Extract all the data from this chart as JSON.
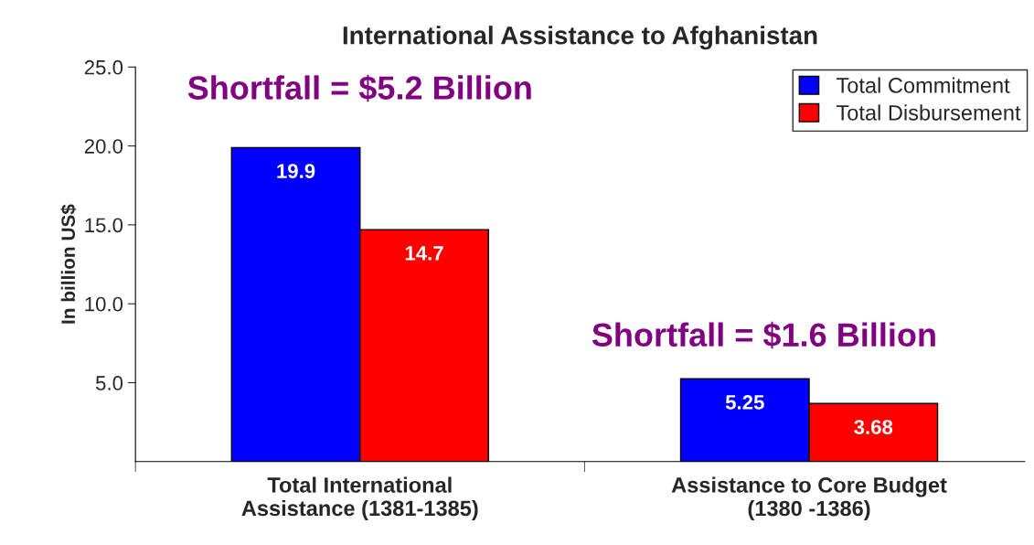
{
  "chart_data": {
    "type": "bar",
    "title": "International Assistance to Afghanistan",
    "ylabel": "In billion US$",
    "categories": [
      "Total International\nAssistance (1381-1385)",
      "Assistance to Core Budget\n(1380 -1386)"
    ],
    "series": [
      {
        "name": "Total Commitment",
        "color": "#0000ff",
        "values": [
          19.9,
          5.25
        ]
      },
      {
        "name": "Total Disbursement",
        "color": "#ff0000",
        "values": [
          14.7,
          3.68
        ]
      }
    ],
    "ylim": [
      0,
      25
    ],
    "yticks": [
      {
        "value": 5,
        "label": "5.0"
      },
      {
        "value": 10,
        "label": "10.0"
      },
      {
        "value": 15,
        "label": "15.0"
      },
      {
        "value": 20,
        "label": "20.0"
      },
      {
        "value": 25,
        "label": "25.0"
      }
    ],
    "data_labels": true,
    "legend": "top right",
    "grid": false,
    "annotations": [
      {
        "text": "Shortfall = $5.2 Billion",
        "x": "Total International\nAssistance (1381-1385)",
        "y": 19.9
      },
      {
        "text": "Shortfall = $1.6 Billion",
        "x": "Assistance to Core Budget\n(1380 -1386)",
        "y": 5.25
      }
    ]
  }
}
